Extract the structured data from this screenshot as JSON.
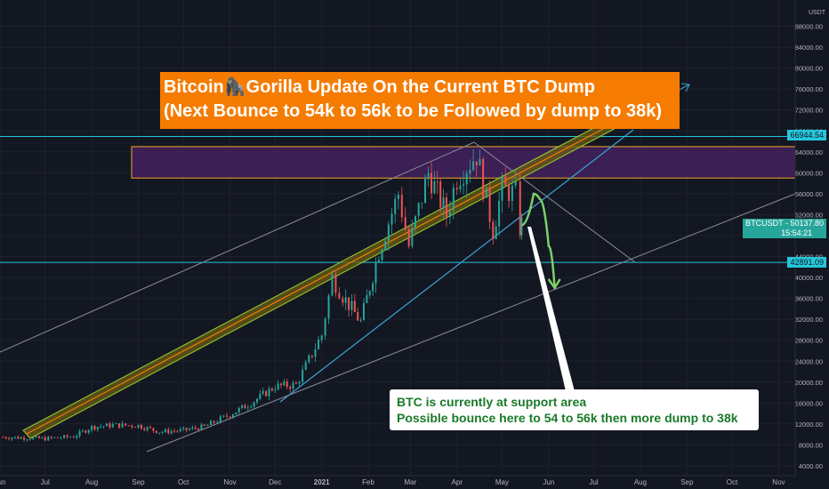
{
  "chart_data": {
    "type": "line",
    "title": "Bitcoin🦍Gorilla Update On the Current BTC Dump",
    "subtitle": "(Next Bounce to 54k to 56k to be Followed by dump to 38k)",
    "ylabel_unit": "USDT",
    "ylim": [
      4000,
      92000
    ],
    "x_ticks": [
      "Jun",
      "Jul",
      "Aug",
      "Sep",
      "Oct",
      "Nov",
      "Dec",
      "2021",
      "Feb",
      "Mar",
      "Apr",
      "May",
      "Jun",
      "Jul",
      "Aug",
      "Sep",
      "Oct",
      "Nov"
    ],
    "y_ticks": [
      "88000.00",
      "84000.00",
      "80000.00",
      "76000.00",
      "72000.00",
      "68000.00",
      "64000.00",
      "60000.00",
      "56000.00",
      "52000.00",
      "48000.00",
      "44000.00",
      "40000.00",
      "36000.00",
      "32000.00",
      "28000.00",
      "24000.00",
      "20000.00",
      "16000.00",
      "12000.00",
      "8000.00",
      "4000.00"
    ],
    "price_series": {
      "name": "BTCUSDT",
      "x": [
        "2020-06-01",
        "2020-06-15",
        "2020-07-01",
        "2020-07-20",
        "2020-08-01",
        "2020-08-15",
        "2020-09-01",
        "2020-09-15",
        "2020-10-01",
        "2020-10-15",
        "2020-11-01",
        "2020-11-15",
        "2020-12-01",
        "2020-12-15",
        "2021-01-01",
        "2021-01-08",
        "2021-01-15",
        "2021-01-27",
        "2021-02-08",
        "2021-02-21",
        "2021-02-28",
        "2021-03-13",
        "2021-03-25",
        "2021-04-01",
        "2021-04-14",
        "2021-04-25",
        "2021-05-01",
        "2021-05-10",
        "2021-05-13",
        "2021-05-14"
      ],
      "y": [
        9500,
        9400,
        9200,
        9600,
        11400,
        11800,
        11700,
        10500,
        10800,
        11500,
        13800,
        16000,
        19200,
        19500,
        29000,
        40000,
        36500,
        31500,
        45000,
        56000,
        46000,
        60000,
        52000,
        59000,
        63500,
        49000,
        57000,
        56000,
        49500,
        50137.8
      ]
    },
    "levels": [
      {
        "label": "66944.54",
        "value": 66944.54,
        "color": "#26c6da"
      },
      {
        "label": "42891.09",
        "value": 42891.09,
        "color": "#26c6da"
      }
    ],
    "supply_zone": [
      59000,
      65000
    ],
    "current_price": {
      "label": "BTCUSDT",
      "value": "50137.80",
      "timer": "15:54:21"
    },
    "projection": [
      "2021-05-14",
      "2021-05-22",
      "2021-05-26",
      "2021-06-01",
      "2021-06-05"
    ],
    "projection_values": [
      50000,
      56000,
      55000,
      46000,
      38000
    ],
    "colors": {
      "background": "#131722",
      "up": "#26a69a",
      "down": "#ef5350",
      "level": "#26c6da",
      "zone": "#3c1f55",
      "zone_border": "#f5a623",
      "channel": "#8a8e99",
      "trend": "#3ba5d8",
      "band_fill": "#6b5f14",
      "band_edge": "#9acd32",
      "band_mid": "#f57c00",
      "projection": "#7bcf6a"
    }
  },
  "callout": {
    "line1": "BTC is currently at support area",
    "line2": "Possible bounce here to 54 to 56k then more dump to 38k"
  }
}
